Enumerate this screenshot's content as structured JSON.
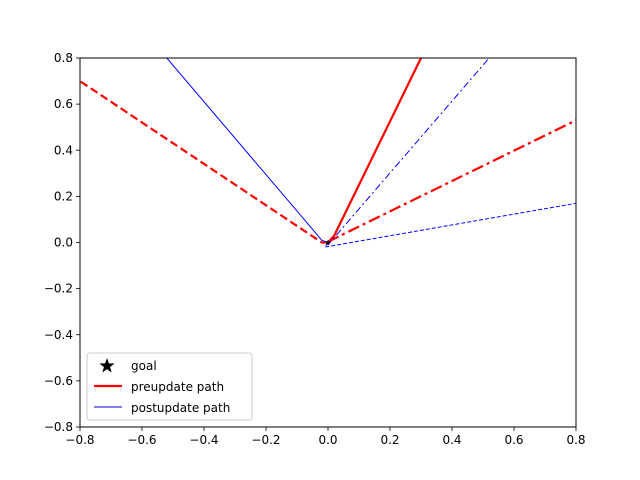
{
  "chart_data": {
    "type": "line",
    "title": "",
    "xlabel": "",
    "ylabel": "",
    "xlim": [
      -0.8,
      0.8
    ],
    "ylim": [
      -0.8,
      0.8
    ],
    "xticks": [
      -0.8,
      -0.6,
      -0.4,
      -0.2,
      0.0,
      0.2,
      0.4,
      0.6,
      0.8
    ],
    "yticks": [
      -0.8,
      -0.6,
      -0.4,
      -0.2,
      0.0,
      0.2,
      0.4,
      0.6,
      0.8
    ],
    "grid": false,
    "legend_position": "lower-left",
    "goal": {
      "label": "goal",
      "x": 0.0,
      "y": 0.0,
      "color": "#000000"
    },
    "series": [
      {
        "name": "preupdate path",
        "color": "#ff0000",
        "style": "dashed",
        "weight": "thick",
        "x": [
          0.0,
          -0.02,
          -0.8
        ],
        "y": [
          0.0,
          0.0,
          0.7
        ]
      },
      {
        "name": "preupdate path",
        "color": "#ff0000",
        "style": "solid",
        "weight": "thick",
        "x": [
          0.0,
          0.02,
          0.3
        ],
        "y": [
          0.0,
          0.03,
          0.8
        ]
      },
      {
        "name": "preupdate path",
        "color": "#ff0000",
        "style": "dashdot",
        "weight": "thick",
        "x": [
          0.0,
          0.01,
          0.8
        ],
        "y": [
          0.0,
          0.01,
          0.53
        ]
      },
      {
        "name": "postupdate path",
        "color": "#0000ff",
        "style": "solid",
        "weight": "thin",
        "x": [
          0.0,
          -0.02,
          -0.52
        ],
        "y": [
          0.0,
          0.01,
          0.8
        ]
      },
      {
        "name": "postupdate path",
        "color": "#0000ff",
        "style": "dashdot",
        "weight": "thin",
        "x": [
          0.0,
          0.0,
          0.52
        ],
        "y": [
          0.0,
          -0.01,
          0.8
        ]
      },
      {
        "name": "postupdate path",
        "color": "#0000ff",
        "style": "dashed",
        "weight": "thin",
        "x": [
          0.0,
          -0.01,
          0.8
        ],
        "y": [
          0.0,
          -0.02,
          0.17
        ]
      }
    ],
    "legend": [
      {
        "label": "goal",
        "marker": "star",
        "color": "#000000"
      },
      {
        "label": "preupdate path",
        "marker": "line",
        "color": "#ff0000",
        "weight": "thick"
      },
      {
        "label": "postupdate path",
        "marker": "line",
        "color": "#0000ff",
        "weight": "thin"
      }
    ]
  }
}
